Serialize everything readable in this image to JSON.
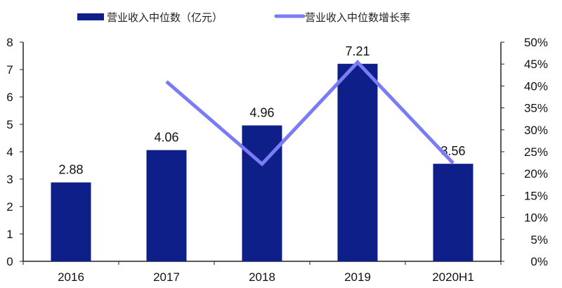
{
  "chart_data": {
    "type": "bar",
    "categories": [
      "2016",
      "2017",
      "2018",
      "2019",
      "2020H1"
    ],
    "series": [
      {
        "name": "营业收入中位数（亿元）",
        "type": "bar",
        "axis": "left",
        "color": "#0f1f8a",
        "values": [
          2.88,
          4.06,
          4.96,
          7.21,
          3.56
        ],
        "data_labels": [
          "2.88",
          "4.06",
          "4.96",
          "7.21",
          "3.56"
        ]
      },
      {
        "name": "营业收入中位数增长率",
        "type": "line",
        "axis": "right",
        "color": "#7b7bf5",
        "values": [
          null,
          41.0,
          22.2,
          45.4,
          22.4
        ]
      }
    ],
    "left_axis": {
      "ylim": [
        0,
        8
      ],
      "ticks": [
        "0",
        "1",
        "2",
        "3",
        "4",
        "5",
        "6",
        "7",
        "8"
      ]
    },
    "right_axis": {
      "ylim": [
        0,
        50
      ],
      "ticks": [
        "0%",
        "5%",
        "10%",
        "15%",
        "20%",
        "25%",
        "30%",
        "35%",
        "40%",
        "45%",
        "50%"
      ]
    },
    "grid": false,
    "legend_position": "top"
  }
}
